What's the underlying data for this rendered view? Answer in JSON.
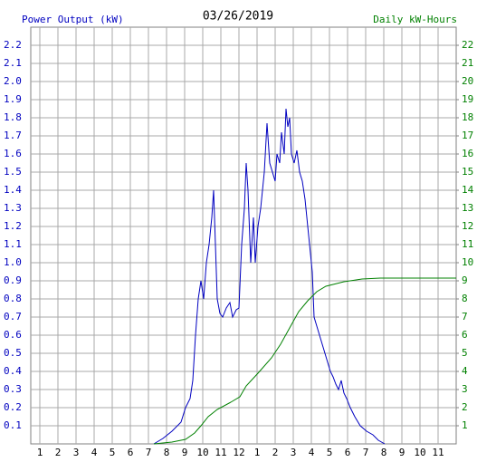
{
  "chart_data": {
    "type": "line",
    "title": "03/26/2019",
    "y_label": "Power Output (kW)",
    "y2_label": "Daily kW-Hours",
    "xlim": [
      0.5,
      24
    ],
    "xticks": [
      {
        "value": 1,
        "label": "1"
      },
      {
        "value": 2,
        "label": "2"
      },
      {
        "value": 3,
        "label": "3"
      },
      {
        "value": 4,
        "label": "4"
      },
      {
        "value": 5,
        "label": "5"
      },
      {
        "value": 6,
        "label": "6"
      },
      {
        "value": 7,
        "label": "7"
      },
      {
        "value": 8,
        "label": "8"
      },
      {
        "value": 9,
        "label": "9"
      },
      {
        "value": 10,
        "label": "10"
      },
      {
        "value": 11,
        "label": "11"
      },
      {
        "value": 12,
        "label": "12"
      },
      {
        "value": 13,
        "label": "1"
      },
      {
        "value": 14,
        "label": "2"
      },
      {
        "value": 15,
        "label": "3"
      },
      {
        "value": 16,
        "label": "4"
      },
      {
        "value": 17,
        "label": "5"
      },
      {
        "value": 18,
        "label": "6"
      },
      {
        "value": 19,
        "label": "7"
      },
      {
        "value": 20,
        "label": "8"
      },
      {
        "value": 21,
        "label": "9"
      },
      {
        "value": 22,
        "label": "10"
      },
      {
        "value": 23,
        "label": "11"
      }
    ],
    "ylim": [
      0,
      2.3
    ],
    "yticks": [
      0.1,
      0.2,
      0.3,
      0.4,
      0.5,
      0.6,
      0.7,
      0.8,
      0.9,
      {
        "value": 1,
        "label": "1.0"
      },
      1.1,
      1.2,
      1.3,
      1.4,
      1.5,
      1.6,
      1.7,
      1.8,
      1.9,
      {
        "value": 2,
        "label": "2.0"
      },
      2.1,
      2.2
    ],
    "y2lim": [
      0,
      23
    ],
    "y2ticks": [
      1,
      2,
      3,
      4,
      5,
      6,
      7,
      8,
      9,
      10,
      11,
      12,
      13,
      14,
      15,
      16,
      17,
      18,
      19,
      20,
      21,
      22
    ],
    "grid": true,
    "y_color": "#0000c0",
    "y2_color": "#008000",
    "series": [
      {
        "name": "Power Output (kW)",
        "color": "#0000c0",
        "x": [
          7.3,
          7.8,
          8.3,
          8.8,
          9.05,
          9.3,
          9.45,
          9.6,
          9.75,
          9.9,
          10.05,
          10.2,
          10.35,
          10.5,
          10.6,
          10.7,
          10.8,
          10.95,
          11.1,
          11.3,
          11.5,
          11.65,
          11.85,
          12,
          12.15,
          12.3,
          12.4,
          12.5,
          12.65,
          12.8,
          12.9,
          13.05,
          13.2,
          13.4,
          13.55,
          13.7,
          13.85,
          14,
          14.1,
          14.25,
          14.35,
          14.5,
          14.6,
          14.7,
          14.8,
          14.9,
          15.05,
          15.2,
          15.35,
          15.5,
          15.65,
          15.75,
          15.85,
          15.95,
          16.05,
          16.15,
          16.3,
          16.45,
          16.6,
          16.75,
          16.9,
          17.05,
          17.2,
          17.35,
          17.5,
          17.65,
          17.8,
          17.95,
          18.15,
          18.4,
          18.7,
          19.05,
          19.4,
          19.7,
          20.05
        ],
        "values": [
          0,
          0.03,
          0.07,
          0.12,
          0.2,
          0.25,
          0.35,
          0.6,
          0.8,
          0.9,
          0.8,
          1.0,
          1.1,
          1.25,
          1.4,
          1.1,
          0.8,
          0.72,
          0.7,
          0.75,
          0.78,
          0.7,
          0.74,
          0.75,
          1.1,
          1.3,
          1.55,
          1.4,
          1.0,
          1.25,
          1.0,
          1.2,
          1.3,
          1.5,
          1.77,
          1.55,
          1.5,
          1.45,
          1.6,
          1.55,
          1.72,
          1.6,
          1.85,
          1.75,
          1.8,
          1.6,
          1.55,
          1.62,
          1.5,
          1.45,
          1.35,
          1.25,
          1.15,
          1.05,
          0.95,
          0.7,
          0.65,
          0.6,
          0.55,
          0.5,
          0.45,
          0.4,
          0.37,
          0.33,
          0.3,
          0.35,
          0.28,
          0.25,
          0.2,
          0.15,
          0.1,
          0.07,
          0.05,
          0.02,
          0
        ]
      },
      {
        "name": "Daily kW-Hours",
        "color": "#008000",
        "axis": "y2",
        "x": [
          7.3,
          8.3,
          9.05,
          9.55,
          9.9,
          10.3,
          10.8,
          11.55,
          12.05,
          12.4,
          13.05,
          13.8,
          14.3,
          14.8,
          15.3,
          15.8,
          16.3,
          16.8,
          17.8,
          18.8,
          19.8,
          24
        ],
        "values": [
          0,
          0.1,
          0.25,
          0.6,
          1.0,
          1.5,
          1.9,
          2.3,
          2.6,
          3.2,
          3.9,
          4.75,
          5.5,
          6.4,
          7.3,
          7.9,
          8.4,
          8.7,
          8.95,
          9.1,
          9.15,
          9.15
        ]
      }
    ]
  }
}
